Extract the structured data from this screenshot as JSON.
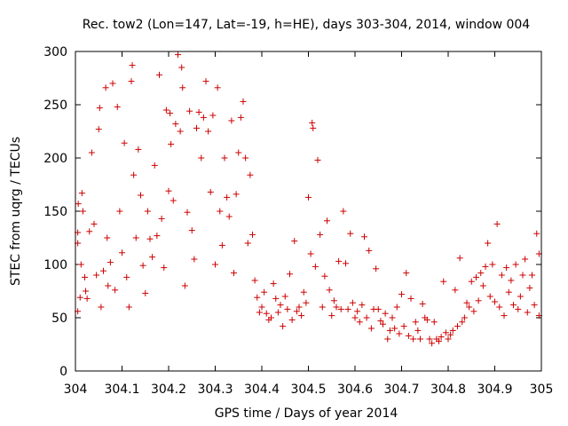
{
  "chart_data": {
    "type": "scatter",
    "title": "Rec. tow2 (Lon=147, Lat=-19, h=HE), days 303-304, 2014, window 004",
    "xlabel": "GPS time / Days of year 2014",
    "ylabel": "STEC from uqrg / TECUs",
    "xlim": [
      304,
      305
    ],
    "ylim": [
      0,
      300
    ],
    "x_ticks": [
      304,
      304.1,
      304.2,
      304.3,
      304.4,
      304.5,
      304.6,
      304.7,
      304.8,
      304.9,
      305
    ],
    "x_tick_labels": [
      "304",
      "304.1",
      "304.2",
      "304.3",
      "304.4",
      "304.5",
      "304.6",
      "304.7",
      "304.8",
      "304.9",
      "305"
    ],
    "y_ticks": [
      0,
      50,
      100,
      150,
      200,
      250,
      300
    ],
    "y_tick_labels": [
      "0",
      "50",
      "100",
      "150",
      "200",
      "250",
      "300"
    ],
    "grid": false,
    "marker": "+",
    "colors": {
      "points": "#cc0000",
      "axes": "#000000"
    },
    "points": [
      [
        304.005,
        56
      ],
      [
        304.005,
        120
      ],
      [
        304.005,
        130
      ],
      [
        304.006,
        157
      ],
      [
        304.01,
        69
      ],
      [
        304.012,
        100
      ],
      [
        304.014,
        167
      ],
      [
        304.016,
        150
      ],
      [
        304.02,
        88
      ],
      [
        304.022,
        75
      ],
      [
        304.025,
        68
      ],
      [
        304.03,
        131
      ],
      [
        304.035,
        205
      ],
      [
        304.04,
        138
      ],
      [
        304.045,
        90
      ],
      [
        304.05,
        227
      ],
      [
        304.052,
        247
      ],
      [
        304.055,
        60
      ],
      [
        304.06,
        94
      ],
      [
        304.065,
        266
      ],
      [
        304.068,
        125
      ],
      [
        304.07,
        80
      ],
      [
        304.075,
        102
      ],
      [
        304.08,
        270
      ],
      [
        304.085,
        76
      ],
      [
        304.09,
        248
      ],
      [
        304.095,
        150
      ],
      [
        304.1,
        111
      ],
      [
        304.105,
        214
      ],
      [
        304.11,
        88
      ],
      [
        304.115,
        60
      ],
      [
        304.12,
        272
      ],
      [
        304.122,
        287
      ],
      [
        304.125,
        184
      ],
      [
        304.13,
        125
      ],
      [
        304.135,
        208
      ],
      [
        304.14,
        165
      ],
      [
        304.145,
        99
      ],
      [
        304.15,
        73
      ],
      [
        304.155,
        150
      ],
      [
        304.16,
        124
      ],
      [
        304.165,
        107
      ],
      [
        304.17,
        193
      ],
      [
        304.175,
        127
      ],
      [
        304.18,
        278
      ],
      [
        304.185,
        143
      ],
      [
        304.19,
        97
      ],
      [
        304.195,
        245
      ],
      [
        304.2,
        169
      ],
      [
        304.203,
        242
      ],
      [
        304.205,
        213
      ],
      [
        304.21,
        160
      ],
      [
        304.215,
        232
      ],
      [
        304.22,
        297
      ],
      [
        304.225,
        225
      ],
      [
        304.228,
        285
      ],
      [
        304.23,
        266
      ],
      [
        304.235,
        80
      ],
      [
        304.24,
        149
      ],
      [
        304.245,
        244
      ],
      [
        304.25,
        132
      ],
      [
        304.255,
        105
      ],
      [
        304.26,
        228
      ],
      [
        304.265,
        243
      ],
      [
        304.27,
        200
      ],
      [
        304.275,
        238
      ],
      [
        304.28,
        272
      ],
      [
        304.285,
        225
      ],
      [
        304.29,
        168
      ],
      [
        304.295,
        240
      ],
      [
        304.3,
        100
      ],
      [
        304.305,
        266
      ],
      [
        304.31,
        150
      ],
      [
        304.315,
        118
      ],
      [
        304.32,
        200
      ],
      [
        304.325,
        163
      ],
      [
        304.33,
        145
      ],
      [
        304.335,
        235
      ],
      [
        304.34,
        92
      ],
      [
        304.345,
        166
      ],
      [
        304.35,
        205
      ],
      [
        304.355,
        238
      ],
      [
        304.36,
        253
      ],
      [
        304.365,
        200
      ],
      [
        304.37,
        120
      ],
      [
        304.375,
        184
      ],
      [
        304.38,
        128
      ],
      [
        304.385,
        85
      ],
      [
        304.39,
        69
      ],
      [
        304.395,
        55
      ],
      [
        304.4,
        60
      ],
      [
        304.405,
        74
      ],
      [
        304.41,
        54
      ],
      [
        304.415,
        48
      ],
      [
        304.42,
        50
      ],
      [
        304.425,
        82
      ],
      [
        304.43,
        68
      ],
      [
        304.435,
        55
      ],
      [
        304.44,
        62
      ],
      [
        304.445,
        42
      ],
      [
        304.45,
        70
      ],
      [
        304.455,
        58
      ],
      [
        304.46,
        91
      ],
      [
        304.465,
        48
      ],
      [
        304.47,
        122
      ],
      [
        304.475,
        56
      ],
      [
        304.48,
        60
      ],
      [
        304.485,
        52
      ],
      [
        304.49,
        74
      ],
      [
        304.495,
        64
      ],
      [
        304.5,
        163
      ],
      [
        304.505,
        110
      ],
      [
        304.508,
        233
      ],
      [
        304.51,
        228
      ],
      [
        304.515,
        98
      ],
      [
        304.52,
        198
      ],
      [
        304.525,
        128
      ],
      [
        304.53,
        60
      ],
      [
        304.535,
        89
      ],
      [
        304.54,
        141
      ],
      [
        304.545,
        76
      ],
      [
        304.55,
        52
      ],
      [
        304.555,
        66
      ],
      [
        304.56,
        60
      ],
      [
        304.565,
        103
      ],
      [
        304.57,
        58
      ],
      [
        304.575,
        150
      ],
      [
        304.58,
        101
      ],
      [
        304.585,
        58
      ],
      [
        304.59,
        129
      ],
      [
        304.595,
        64
      ],
      [
        304.6,
        50
      ],
      [
        304.605,
        56
      ],
      [
        304.61,
        46
      ],
      [
        304.615,
        62
      ],
      [
        304.62,
        126
      ],
      [
        304.625,
        50
      ],
      [
        304.63,
        113
      ],
      [
        304.635,
        40
      ],
      [
        304.64,
        58
      ],
      [
        304.645,
        96
      ],
      [
        304.65,
        58
      ],
      [
        304.655,
        47
      ],
      [
        304.66,
        44
      ],
      [
        304.665,
        54
      ],
      [
        304.67,
        30
      ],
      [
        304.675,
        38
      ],
      [
        304.68,
        50
      ],
      [
        304.685,
        40
      ],
      [
        304.69,
        60
      ],
      [
        304.695,
        35
      ],
      [
        304.7,
        72
      ],
      [
        304.705,
        42
      ],
      [
        304.71,
        92
      ],
      [
        304.715,
        33
      ],
      [
        304.72,
        68
      ],
      [
        304.725,
        30
      ],
      [
        304.73,
        46
      ],
      [
        304.735,
        38
      ],
      [
        304.74,
        30
      ],
      [
        304.745,
        63
      ],
      [
        304.75,
        50
      ],
      [
        304.755,
        48
      ],
      [
        304.76,
        30
      ],
      [
        304.765,
        26
      ],
      [
        304.77,
        46
      ],
      [
        304.775,
        30
      ],
      [
        304.78,
        28
      ],
      [
        304.785,
        32
      ],
      [
        304.79,
        84
      ],
      [
        304.795,
        36
      ],
      [
        304.8,
        30
      ],
      [
        304.805,
        34
      ],
      [
        304.81,
        38
      ],
      [
        304.815,
        76
      ],
      [
        304.82,
        42
      ],
      [
        304.825,
        106
      ],
      [
        304.83,
        46
      ],
      [
        304.835,
        50
      ],
      [
        304.84,
        64
      ],
      [
        304.845,
        60
      ],
      [
        304.85,
        84
      ],
      [
        304.855,
        56
      ],
      [
        304.86,
        88
      ],
      [
        304.865,
        66
      ],
      [
        304.87,
        92
      ],
      [
        304.875,
        80
      ],
      [
        304.88,
        98
      ],
      [
        304.885,
        120
      ],
      [
        304.89,
        70
      ],
      [
        304.895,
        100
      ],
      [
        304.9,
        65
      ],
      [
        304.905,
        138
      ],
      [
        304.91,
        60
      ],
      [
        304.915,
        90
      ],
      [
        304.92,
        52
      ],
      [
        304.925,
        97
      ],
      [
        304.93,
        74
      ],
      [
        304.935,
        85
      ],
      [
        304.94,
        62
      ],
      [
        304.945,
        100
      ],
      [
        304.95,
        58
      ],
      [
        304.955,
        70
      ],
      [
        304.96,
        90
      ],
      [
        304.965,
        105
      ],
      [
        304.97,
        55
      ],
      [
        304.975,
        78
      ],
      [
        304.98,
        90
      ],
      [
        304.985,
        62
      ],
      [
        304.99,
        129
      ],
      [
        304.995,
        110
      ],
      [
        304.995,
        52
      ]
    ]
  }
}
